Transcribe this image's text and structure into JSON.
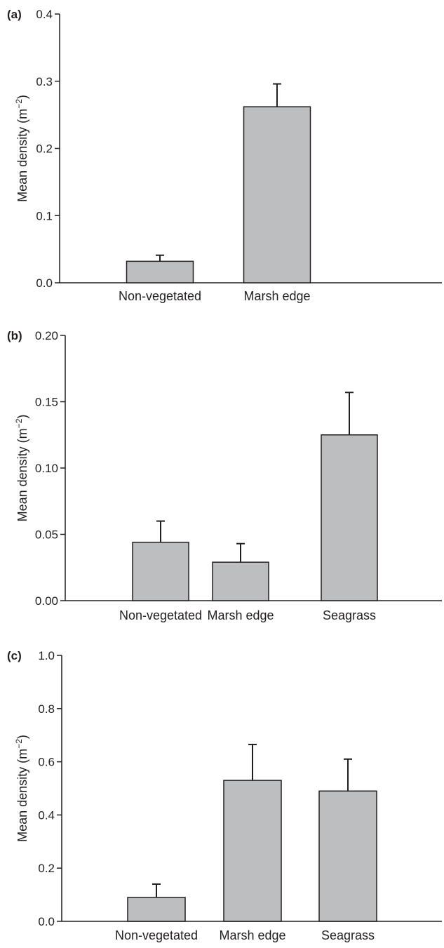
{
  "style": {
    "bar_fill": "#bcbec0",
    "stroke": "#231f20"
  },
  "chart_data": [
    {
      "type": "bar",
      "panel_label": "(a)",
      "categories": [
        "Non-vegetated",
        "Marsh edge"
      ],
      "values": [
        0.032,
        0.262
      ],
      "error_upper": [
        0.041,
        0.296
      ],
      "yticks": [
        "0.0",
        "0.1",
        "0.2",
        "0.3",
        "0.4"
      ],
      "ylim": [
        0,
        0.4
      ],
      "ylabel": "Mean density (m",
      "ylabel_sup": "−2",
      "ylabel_close": ")",
      "xlabel": "",
      "title": "",
      "grid": false,
      "legend": "none"
    },
    {
      "type": "bar",
      "panel_label": "(b)",
      "categories": [
        "Non-vegetated",
        "Marsh edge",
        "Seagrass"
      ],
      "values": [
        0.044,
        0.029,
        0.125
      ],
      "error_upper": [
        0.06,
        0.043,
        0.157
      ],
      "yticks": [
        "0.00",
        "0.05",
        "0.10",
        "0.15",
        "0.20"
      ],
      "ylim": [
        0,
        0.2
      ],
      "ylabel": "Mean density (m",
      "ylabel_sup": "−2",
      "ylabel_close": ")",
      "xlabel": "",
      "title": "",
      "grid": false,
      "legend": "none"
    },
    {
      "type": "bar",
      "panel_label": "(c)",
      "categories": [
        "Non-vegetated",
        "Marsh edge",
        "Seagrass"
      ],
      "values": [
        0.09,
        0.53,
        0.49
      ],
      "error_upper": [
        0.14,
        0.665,
        0.61
      ],
      "yticks": [
        "0.0",
        "0.2",
        "0.4",
        "0.6",
        "0.8",
        "1.0"
      ],
      "ylim": [
        0,
        1.0
      ],
      "ylabel": "Mean density (m",
      "ylabel_sup": "−2",
      "ylabel_close": ")",
      "xlabel": "",
      "title": "",
      "grid": false,
      "legend": "none"
    }
  ]
}
